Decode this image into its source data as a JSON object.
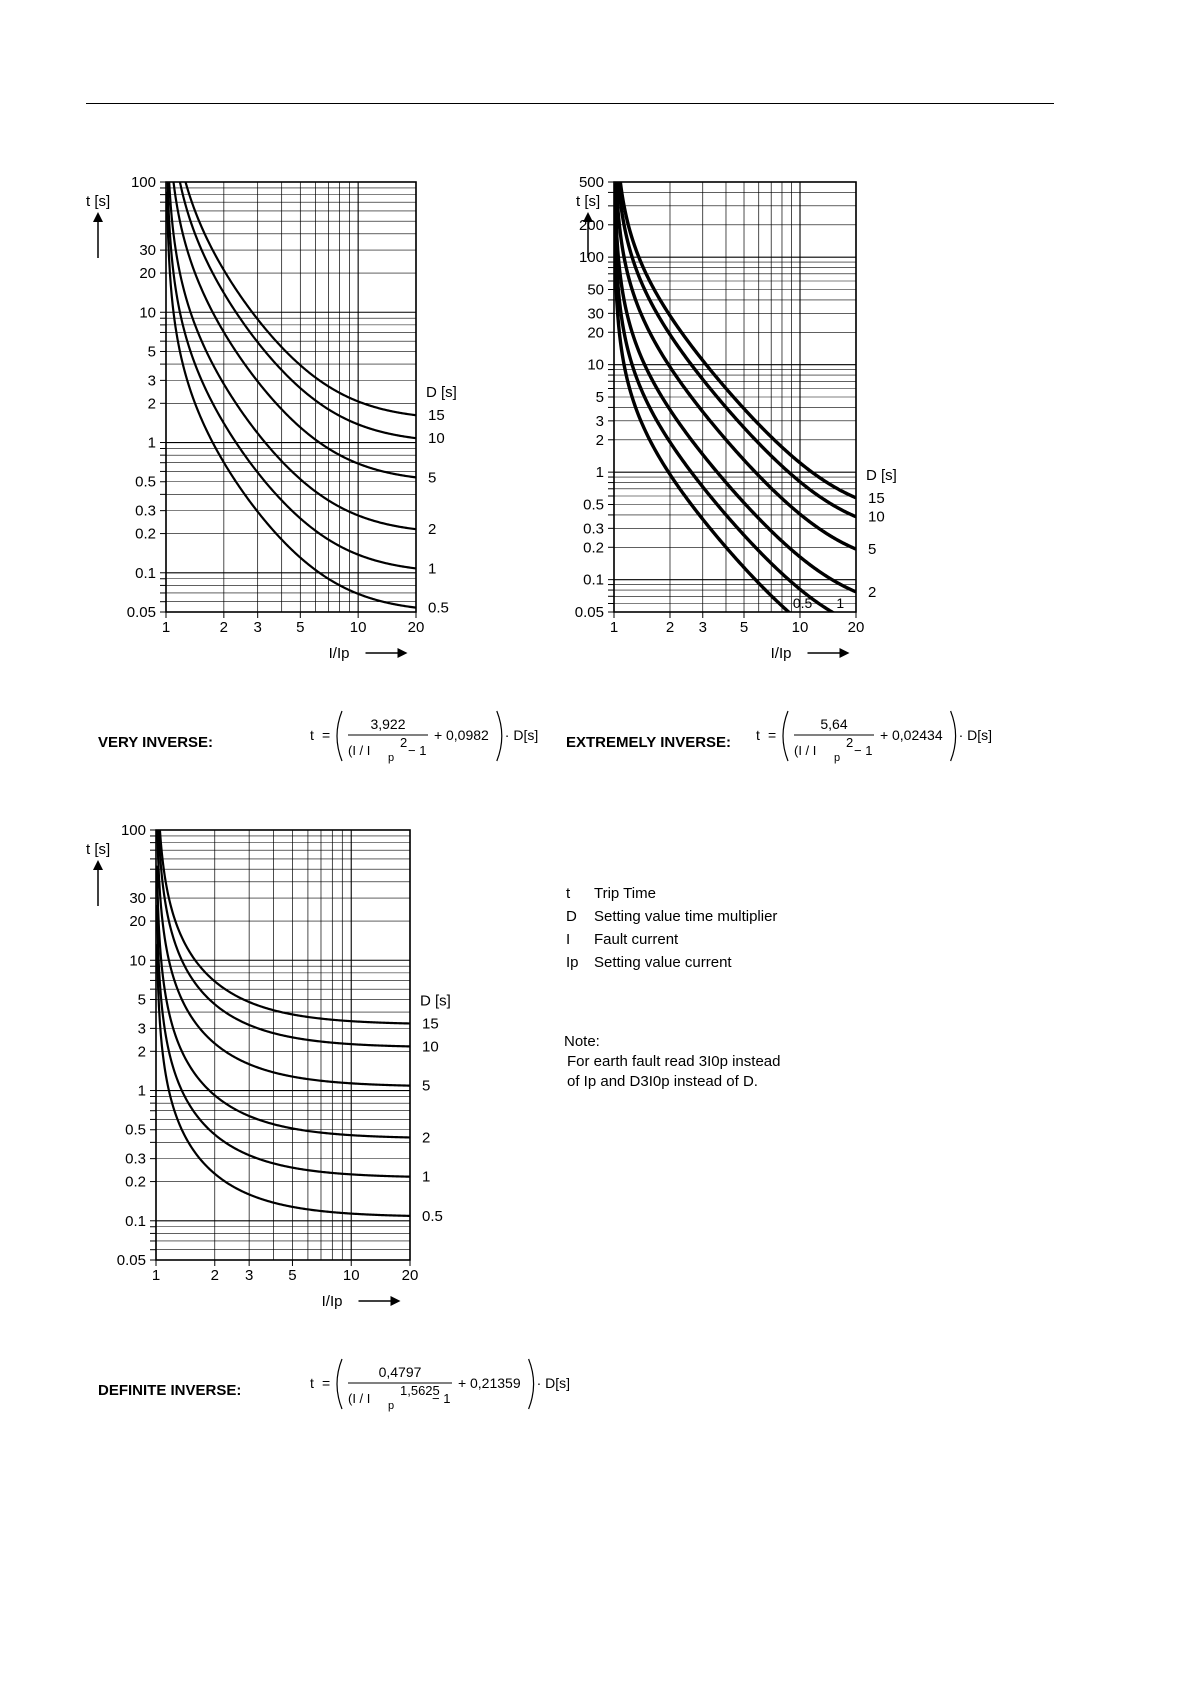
{
  "charts_meta": {
    "t_label": "t [s]",
    "x_label": "I/Ip",
    "d_label": "D [s]"
  },
  "chart_data": [
    {
      "id": "very_inverse",
      "type": "line",
      "formula_label": "VERY INVERSE:",
      "formula": {
        "numerator": "3,922",
        "exponent": "2",
        "constant": "0,0982"
      },
      "x_scale": "log",
      "y_scale": "log",
      "xlim": [
        1,
        20
      ],
      "ylim": [
        0.05,
        100
      ],
      "x_ticks": [
        1,
        2,
        3,
        5,
        10,
        20
      ],
      "y_ticks": [
        0.05,
        0.1,
        0.2,
        0.3,
        0.5,
        1,
        2,
        3,
        5,
        10,
        20,
        30,
        100
      ],
      "k": 3.922,
      "p": 2,
      "c": 0.0982,
      "series": [
        {
          "name": "0.5",
          "D": 0.5
        },
        {
          "name": "1",
          "D": 1
        },
        {
          "name": "2",
          "D": 2
        },
        {
          "name": "5",
          "D": 5
        },
        {
          "name": "10",
          "D": 10
        },
        {
          "name": "15",
          "D": 15
        }
      ]
    },
    {
      "id": "extremely_inverse",
      "type": "line",
      "formula_label": "EXTREMELY INVERSE:",
      "formula": {
        "numerator": "5,64",
        "exponent": "2",
        "constant": "0,02434"
      },
      "x_scale": "log",
      "y_scale": "log",
      "xlim": [
        1,
        20
      ],
      "ylim": [
        0.05,
        500
      ],
      "x_ticks": [
        1,
        2,
        3,
        5,
        10,
        20
      ],
      "y_ticks": [
        0.05,
        0.1,
        0.2,
        0.3,
        0.5,
        1,
        2,
        3,
        5,
        10,
        20,
        30,
        50,
        100,
        200,
        500
      ],
      "k": 5.64,
      "p": 2,
      "c": 0.02434,
      "series": [
        {
          "name": "0.5",
          "D": 0.5
        },
        {
          "name": "1",
          "D": 1
        },
        {
          "name": "2",
          "D": 2
        },
        {
          "name": "5",
          "D": 5
        },
        {
          "name": "10",
          "D": 10
        },
        {
          "name": "15",
          "D": 15
        }
      ]
    },
    {
      "id": "definite_inverse",
      "type": "line",
      "formula_label": "DEFINITE INVERSE:",
      "formula": {
        "numerator": "0,4797",
        "exponent": "1,5625",
        "constant": "0,21359"
      },
      "x_scale": "log",
      "y_scale": "log",
      "xlim": [
        1,
        20
      ],
      "ylim": [
        0.05,
        100
      ],
      "x_ticks": [
        1,
        2,
        3,
        5,
        10,
        20
      ],
      "y_ticks": [
        0.05,
        0.1,
        0.2,
        0.3,
        0.5,
        1,
        2,
        3,
        5,
        10,
        20,
        30,
        100
      ],
      "k": 0.4797,
      "p": 1.5625,
      "c": 0.21359,
      "series": [
        {
          "name": "0.5",
          "D": 0.5
        },
        {
          "name": "1",
          "D": 1
        },
        {
          "name": "2",
          "D": 2
        },
        {
          "name": "5",
          "D": 5
        },
        {
          "name": "10",
          "D": 10
        },
        {
          "name": "15",
          "D": 15
        }
      ]
    }
  ],
  "formula_text": {
    "t": "t",
    "equals": "=",
    "denominator_base": "(I / I",
    "subscript": "p",
    "minus_one": "− 1",
    "plus": "+",
    "times_d": "· D[s]"
  },
  "legend": [
    {
      "symbol": "t",
      "text": "Trip Time"
    },
    {
      "symbol": "D",
      "text": "Setting value time multiplier"
    },
    {
      "symbol": "I",
      "text": "Fault current"
    },
    {
      "symbol": "Ip",
      "text": "Setting value current"
    }
  ],
  "note": {
    "title": "Note:",
    "line1": "For earth fault read 3I0p instead",
    "line2": "of Ip and D3I0p instead of D."
  }
}
